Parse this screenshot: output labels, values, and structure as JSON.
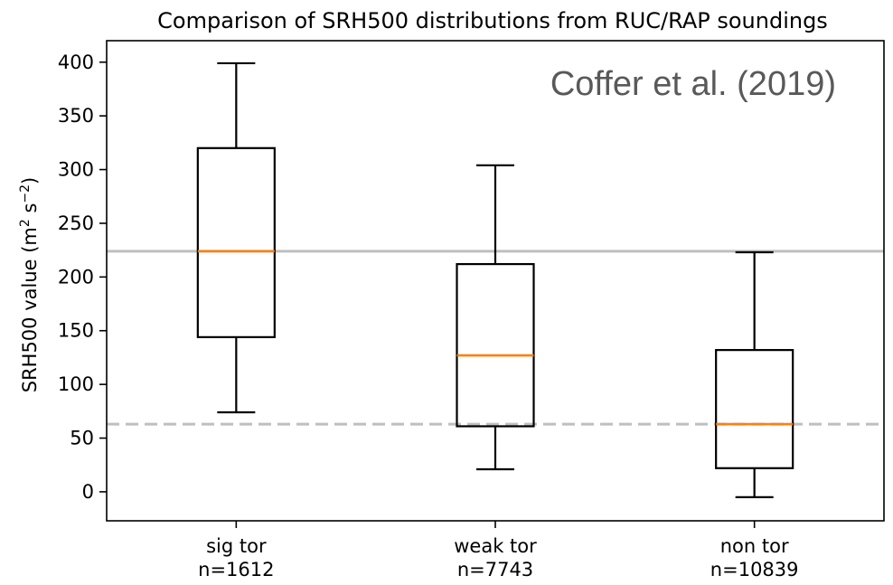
{
  "chart_data": {
    "type": "box",
    "title": "Comparison of SRH500 distributions from RUC/RAP soundings",
    "ylabel_main": "SRH500 value (m",
    "ylabel_sup1": "2",
    "ylabel_mid": " s",
    "ylabel_sup2": "−2",
    "ylabel_end": ")",
    "ylim": [
      -27,
      420
    ],
    "yticks": [
      0,
      50,
      100,
      150,
      200,
      250,
      300,
      350,
      400
    ],
    "annotation": "Coffer et al. (2019)",
    "reference_lines": [
      {
        "value": 224,
        "style": "solid",
        "color": "#bfbfbf"
      },
      {
        "value": 63,
        "style": "dashed",
        "color": "#bfbfbf"
      }
    ],
    "categories": [
      {
        "label": "sig tor",
        "n_label": "n=1612"
      },
      {
        "label": "weak tor",
        "n_label": "n=7743"
      },
      {
        "label": "non tor",
        "n_label": "n=10839"
      }
    ],
    "boxes": [
      {
        "whisker_low": 74,
        "q1": 144,
        "median": 224,
        "q3": 320,
        "whisker_high": 399
      },
      {
        "whisker_low": 21,
        "q1": 61,
        "median": 127,
        "q3": 212,
        "whisker_high": 304
      },
      {
        "whisker_low": -5,
        "q1": 22,
        "median": 63,
        "q3": 132,
        "whisker_high": 223
      }
    ],
    "median_color": "#ff7f0e",
    "grid": false
  }
}
